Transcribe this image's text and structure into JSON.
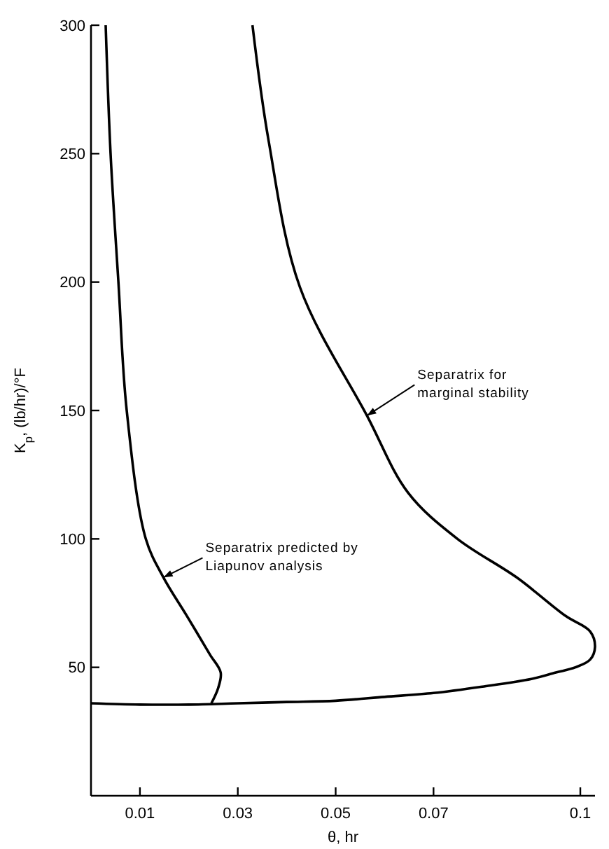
{
  "chart_data": {
    "type": "line",
    "xlabel": "θ, hr",
    "ylabel": "K$_{p}$, (lb/hr)/°F",
    "xlim": [
      0,
      0.103
    ],
    "xticks": [
      0.01,
      0.03,
      0.05,
      0.07,
      0.1
    ],
    "ylim": [
      0,
      300
    ],
    "yticks": [
      50,
      100,
      150,
      200,
      250,
      300
    ],
    "grid": false,
    "marker": "none",
    "line_style": "solid",
    "series": [
      {
        "color": "#000000",
        "x": [
          0.003,
          0.004,
          0.0056,
          0.0073,
          0.0112,
          0.0148,
          0.0196,
          0.0243,
          0.0265,
          0.026,
          0.0246
        ],
        "values": [
          300,
          250,
          200,
          150,
          100,
          85,
          70,
          55,
          48,
          42,
          36
        ]
      },
      {
        "color": "#000000",
        "x": [
          0,
          0.01,
          0.02,
          0.03,
          0.04,
          0.05,
          0.06,
          0.07,
          0.08,
          0.09,
          0.095,
          0.099,
          0.102,
          0.103,
          0.102,
          0.097,
          0.087,
          0.0749,
          0.0648,
          0.0564,
          0.0427,
          0.0363,
          0.033
        ],
        "values": [
          36,
          35.5,
          35.5,
          36,
          36.5,
          37,
          38.5,
          40,
          42.5,
          45.5,
          48,
          50,
          53,
          58,
          64,
          70,
          85,
          100,
          118,
          148,
          198,
          255,
          300
        ]
      }
    ],
    "annotations": [
      {
        "text": "Separatrix predicted by\nLiapunov analysis",
        "x": 0.0148,
        "y": 85
      },
      {
        "text": "Separatrix for\nmarginal stability",
        "x": 0.0564,
        "y": 148
      }
    ]
  }
}
